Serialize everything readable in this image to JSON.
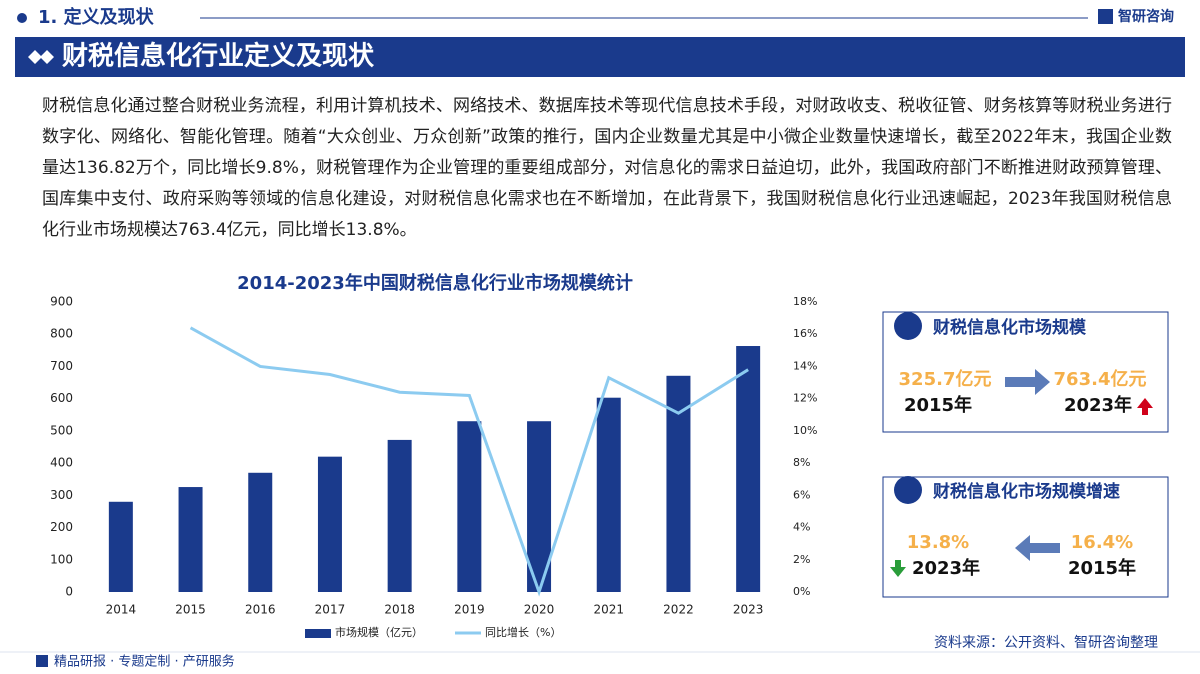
{
  "header": {
    "section": "1. 定义及现状",
    "brand": "智研咨询",
    "banner": "财税信息化行业定义及现状"
  },
  "paragraph": "财税信息化通过整合财税业务流程，利用计算机技术、网络技术、数据库技术等现代信息技术手段，对财政收支、税收征管、财务核算等财税业务进行数字化、网络化、智能化管理。随着“大众创业、万众创新”政策的推行，国内企业数量尤其是中小微企业数量快速增长，截至2022年末，我国企业数量达136.82万个，同比增长9.8%，财税管理作为企业管理的重要组成部分，对信息化的需求日益迫切，此外，我国政府部门不断推进财政预算管理、国库集中支付、政府采购等领域的信息化建设，对财税信息化需求也在不断增加，在此背景下，我国财税信息化行业迅速崛起，2023年我国财税信息化行业市场规模达763.4亿元，同比增长13.8%。",
  "chart_data": {
    "type": "bar-line",
    "title": "2014-2023年中国财税信息化行业市场规模统计",
    "categories": [
      "2014",
      "2015",
      "2016",
      "2017",
      "2018",
      "2019",
      "2020",
      "2021",
      "2022",
      "2023"
    ],
    "series": [
      {
        "name": "市场规模（亿元）",
        "color": "#1a3a8c",
        "type": "bar",
        "values": [
          280,
          325.7,
          370,
          420,
          472,
          530,
          530,
          603,
          671,
          763.4
        ]
      },
      {
        "name": "同比增长（%）",
        "color": "#8ccbf0",
        "type": "line",
        "axis": "y2",
        "values": [
          null,
          16.4,
          14.0,
          13.5,
          12.4,
          12.2,
          0,
          13.3,
          11.1,
          13.8
        ]
      }
    ],
    "ylim": [
      0,
      900
    ],
    "yticks": [
      0,
      100,
      200,
      300,
      400,
      500,
      600,
      700,
      800,
      900
    ],
    "y2lim": [
      0,
      18
    ],
    "y2ticks": [
      {
        "value": 0,
        "label": "0%"
      },
      {
        "value": 2,
        "label": "2%"
      },
      {
        "value": 4,
        "label": "4%"
      },
      {
        "value": 6,
        "label": "6%"
      },
      {
        "value": 8,
        "label": "8%"
      },
      {
        "value": 10,
        "label": "10%"
      },
      {
        "value": 12,
        "label": "12%"
      },
      {
        "value": 14,
        "label": "14%"
      },
      {
        "value": 16,
        "label": "16%"
      },
      {
        "value": 18,
        "label": "18%"
      }
    ],
    "grid": false,
    "legend": "bottom"
  },
  "panels": [
    {
      "title": "财税信息化市场规模",
      "left_value": "325.7亿元",
      "left_year": "2015年",
      "right_value": "763.4亿元",
      "right_year": "2023年"
    },
    {
      "title": "财税信息化市场规模增速",
      "left_value": "13.8%",
      "left_year": "2023年",
      "right_value": "16.4%",
      "right_year": "2015年"
    }
  ],
  "footer": {
    "slogan": "精品研报 · 专题定制 · 产研服务",
    "source": "资料来源：公开资料、智研咨询整理"
  }
}
